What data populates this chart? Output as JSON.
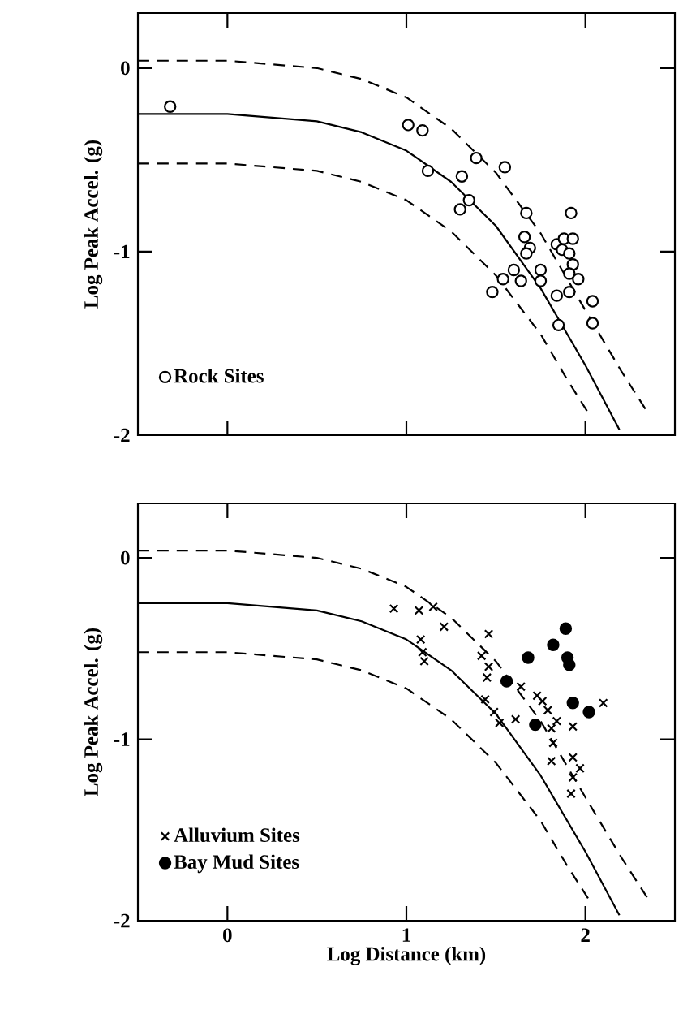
{
  "chart_data": [
    {
      "type": "scatter",
      "ylabel": "Log Peak Accel. (g)",
      "xlim": [
        -0.5,
        2.5
      ],
      "ylim": [
        -2,
        0.3
      ],
      "xticks": [
        0,
        1,
        2
      ],
      "yticks": [
        0,
        -1,
        -2
      ],
      "tick_labels": "y",
      "legend": "bottom left",
      "series": [
        {
          "type": "line",
          "color": "#000000",
          "line_style": "dashed",
          "marker": "none",
          "x": [
            -0.5,
            0,
            0.5,
            0.75,
            1,
            1.25,
            1.5,
            1.75,
            2.0,
            2.2,
            2.35
          ],
          "values": [
            0.04,
            0.04,
            0.0,
            -0.06,
            -0.16,
            -0.33,
            -0.57,
            -0.9,
            -1.32,
            -1.65,
            -1.88
          ]
        },
        {
          "type": "line",
          "color": "#000000",
          "line_style": "solid",
          "marker": "none",
          "x": [
            -0.5,
            0,
            0.5,
            0.75,
            1,
            1.25,
            1.5,
            1.75,
            2.0,
            2.19
          ],
          "values": [
            -0.25,
            -0.25,
            -0.29,
            -0.35,
            -0.45,
            -0.62,
            -0.86,
            -1.2,
            -1.62,
            -1.97
          ]
        },
        {
          "type": "line",
          "color": "#000000",
          "line_style": "dashed",
          "marker": "none",
          "x": [
            -0.5,
            0,
            0.5,
            0.75,
            1,
            1.25,
            1.5,
            1.75,
            1.9,
            2.03
          ],
          "values": [
            -0.52,
            -0.52,
            -0.56,
            -0.62,
            -0.72,
            -0.89,
            -1.13,
            -1.45,
            -1.7,
            -1.9
          ]
        },
        {
          "name": "Rock Sites",
          "color": "#ffffff",
          "marker": "circle",
          "x": [
            -0.32,
            1.01,
            1.09,
            1.12,
            1.31,
            1.39,
            1.55,
            1.35,
            1.3,
            1.92,
            1.67,
            1.66,
            1.69,
            1.67,
            1.84,
            1.88,
            1.93,
            1.87,
            1.91,
            1.93,
            1.91,
            1.6,
            1.54,
            1.48,
            1.64,
            1.75,
            1.75,
            1.84,
            1.91,
            1.96,
            2.04,
            2.04,
            1.85
          ],
          "values": [
            -0.21,
            -0.31,
            -0.34,
            -0.56,
            -0.59,
            -0.49,
            -0.54,
            -0.72,
            -0.77,
            -0.79,
            -0.79,
            -0.92,
            -0.98,
            -1.01,
            -0.96,
            -0.93,
            -0.93,
            -0.99,
            -1.01,
            -1.07,
            -1.12,
            -1.1,
            -1.15,
            -1.22,
            -1.16,
            -1.1,
            -1.16,
            -1.24,
            -1.22,
            -1.15,
            -1.27,
            -1.39,
            -1.4
          ]
        }
      ]
    },
    {
      "type": "scatter",
      "xlabel": "Log Distance (km)",
      "ylabel": "Log Peak Accel. (g)",
      "xlim": [
        -0.5,
        2.5
      ],
      "ylim": [
        -2,
        0.3
      ],
      "xticks": [
        0,
        1,
        2
      ],
      "yticks": [
        0,
        -1,
        -2
      ],
      "legend": "bottom left",
      "series": [
        {
          "type": "line",
          "color": "#000000",
          "line_style": "dashed",
          "marker": "none",
          "x": [
            -0.5,
            0,
            0.5,
            0.75,
            1,
            1.25,
            1.5,
            1.75,
            2.0,
            2.2,
            2.35
          ],
          "values": [
            0.04,
            0.04,
            0.0,
            -0.06,
            -0.16,
            -0.33,
            -0.57,
            -0.9,
            -1.32,
            -1.65,
            -1.88
          ]
        },
        {
          "type": "line",
          "color": "#000000",
          "line_style": "solid",
          "marker": "none",
          "x": [
            -0.5,
            0,
            0.5,
            0.75,
            1,
            1.25,
            1.5,
            1.75,
            2.0,
            2.19
          ],
          "values": [
            -0.25,
            -0.25,
            -0.29,
            -0.35,
            -0.45,
            -0.62,
            -0.86,
            -1.2,
            -1.62,
            -1.97
          ]
        },
        {
          "type": "line",
          "color": "#000000",
          "line_style": "dashed",
          "marker": "none",
          "x": [
            -0.5,
            0,
            0.5,
            0.75,
            1,
            1.25,
            1.5,
            1.75,
            1.9,
            2.03
          ],
          "values": [
            -0.52,
            -0.52,
            -0.56,
            -0.62,
            -0.72,
            -0.89,
            -1.13,
            -1.45,
            -1.7,
            -1.9
          ]
        },
        {
          "name": "Alluvium Sites",
          "color": "#000000",
          "marker": "cross",
          "x": [
            0.93,
            1.07,
            1.15,
            1.21,
            1.08,
            1.09,
            1.1,
            1.46,
            1.42,
            1.46,
            1.45,
            1.64,
            1.73,
            1.76,
            1.44,
            1.49,
            1.52,
            1.61,
            1.84,
            1.81,
            1.82,
            1.81,
            1.93,
            2.1,
            1.93,
            1.97,
            1.93,
            1.92,
            1.79
          ],
          "values": [
            -0.28,
            -0.29,
            -0.27,
            -0.38,
            -0.45,
            -0.52,
            -0.57,
            -0.42,
            -0.54,
            -0.6,
            -0.66,
            -0.71,
            -0.76,
            -0.79,
            -0.78,
            -0.85,
            -0.91,
            -0.89,
            -0.9,
            -0.94,
            -1.02,
            -1.12,
            -0.93,
            -0.8,
            -1.1,
            -1.16,
            -1.21,
            -1.3,
            -0.84
          ]
        },
        {
          "name": "Bay Mud Sites",
          "color": "#000000",
          "marker": "circle",
          "x": [
            1.89,
            1.82,
            1.68,
            1.9,
            1.91,
            1.56,
            1.93,
            2.02,
            1.72
          ],
          "values": [
            -0.39,
            -0.48,
            -0.55,
            -0.55,
            -0.59,
            -0.68,
            -0.8,
            -0.85,
            -0.92
          ]
        }
      ]
    }
  ]
}
